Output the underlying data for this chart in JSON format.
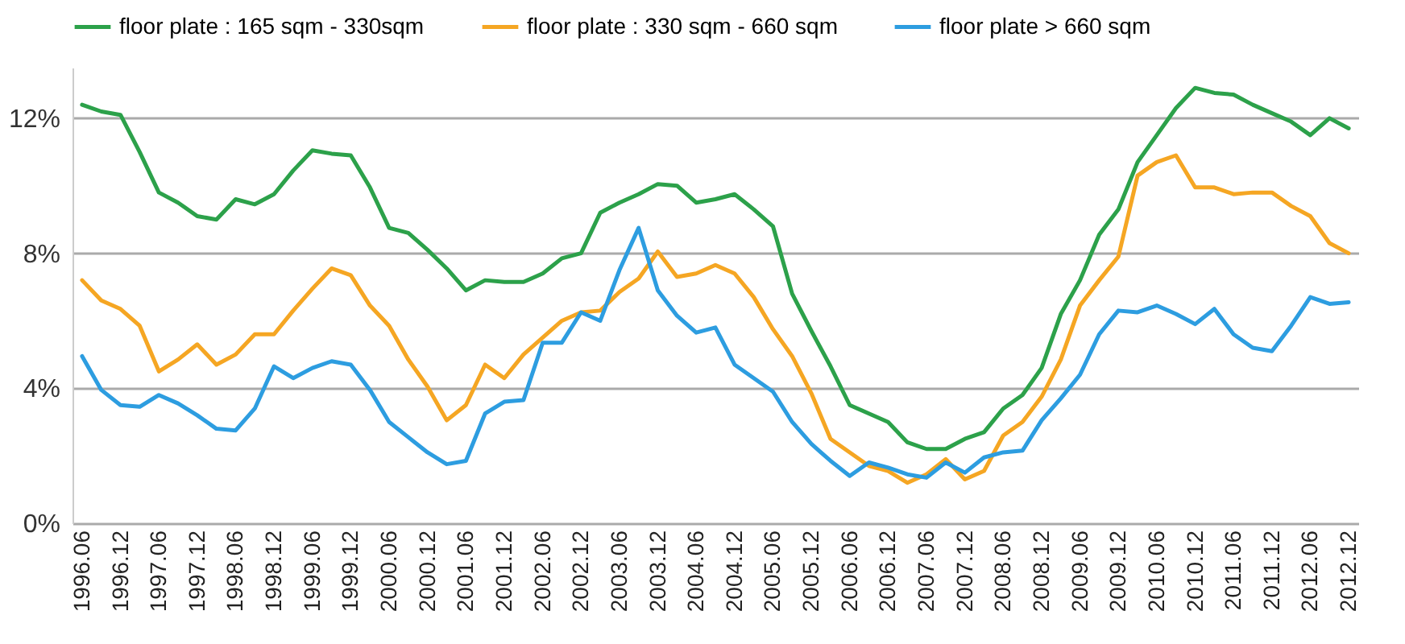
{
  "chart_data": {
    "type": "line",
    "categories": [
      "1996.06",
      null,
      "1996.12",
      null,
      "1997.06",
      null,
      "1997.12",
      null,
      "1998.06",
      null,
      "1998.12",
      null,
      "1999.06",
      null,
      "1999.12",
      null,
      "2000.06",
      null,
      "2000.12",
      null,
      "2001.06",
      null,
      "2001.12",
      null,
      "2002.06",
      null,
      "2002.12",
      null,
      "2003.06",
      null,
      "2003.12",
      null,
      "2004.06",
      null,
      "2004.12",
      null,
      "2005.06",
      null,
      "2005.12",
      null,
      "2006.06",
      null,
      "2006.12",
      null,
      "2007.06",
      null,
      "2007.12",
      null,
      "2008.06",
      null,
      "2008.12",
      null,
      "2009.06",
      null,
      "2009.12",
      null,
      "2010.06",
      null,
      "2010.12",
      null,
      "2011.06",
      null,
      "2011.12",
      null,
      "2012.06",
      null,
      "2012.12"
    ],
    "series": [
      {
        "name": "floor plate : 165 sqm - 330sqm",
        "color": "#2ca14a",
        "values": [
          12.4,
          12.2,
          12.1,
          11.0,
          9.8,
          9.5,
          9.1,
          9.0,
          9.6,
          9.45,
          9.75,
          10.45,
          11.05,
          10.95,
          10.9,
          9.95,
          8.75,
          8.6,
          8.1,
          7.55,
          6.9,
          7.2,
          7.15,
          7.15,
          7.4,
          7.85,
          8.0,
          9.2,
          9.5,
          9.75,
          10.05,
          10.0,
          9.5,
          9.6,
          9.75,
          9.3,
          8.8,
          6.8,
          5.7,
          4.65,
          3.5,
          3.25,
          3.0,
          2.4,
          2.2,
          2.2,
          2.5,
          2.7,
          3.4,
          3.8,
          4.6,
          6.2,
          7.2,
          8.55,
          9.3,
          10.7,
          11.5,
          12.3,
          12.9,
          12.75,
          12.7,
          12.4,
          12.15,
          11.9,
          11.5,
          12.0,
          11.7
        ]
      },
      {
        "name": "floor plate : 330 sqm - 660 sqm",
        "color": "#f5a623",
        "values": [
          7.2,
          6.6,
          6.35,
          5.85,
          4.5,
          4.85,
          5.3,
          4.7,
          5.0,
          5.6,
          5.6,
          6.3,
          6.95,
          7.55,
          7.35,
          6.45,
          5.85,
          4.85,
          4.05,
          3.05,
          3.5,
          4.7,
          4.3,
          5.0,
          5.5,
          6.0,
          6.25,
          6.3,
          6.85,
          7.25,
          8.05,
          7.3,
          7.4,
          7.65,
          7.4,
          6.7,
          5.75,
          4.95,
          3.85,
          2.5,
          2.1,
          1.7,
          1.55,
          1.2,
          1.45,
          1.9,
          1.3,
          1.55,
          2.6,
          3.0,
          3.75,
          4.85,
          6.45,
          7.2,
          7.9,
          10.3,
          10.7,
          10.9,
          9.95,
          9.95,
          9.75,
          9.8,
          9.8,
          9.4,
          9.1,
          8.3,
          8.0
        ]
      },
      {
        "name": "floor plate > 660 sqm",
        "color": "#2d9de0",
        "values": [
          4.95,
          3.95,
          3.5,
          3.45,
          3.8,
          3.55,
          3.2,
          2.8,
          2.75,
          3.4,
          4.65,
          4.3,
          4.6,
          4.8,
          4.7,
          3.95,
          3.0,
          2.55,
          2.1,
          1.75,
          1.85,
          3.25,
          3.6,
          3.65,
          5.35,
          5.35,
          6.25,
          6.0,
          7.5,
          8.75,
          6.9,
          6.15,
          5.65,
          5.8,
          4.7,
          4.3,
          3.9,
          3.0,
          2.35,
          1.85,
          1.4,
          1.8,
          1.65,
          1.45,
          1.35,
          1.8,
          1.5,
          1.95,
          2.1,
          2.15,
          3.05,
          3.7,
          4.4,
          5.6,
          6.3,
          6.25,
          6.45,
          6.2,
          5.9,
          6.35,
          5.6,
          5.2,
          5.1,
          5.85,
          6.7,
          6.5,
          6.55
        ]
      }
    ],
    "ylim": [
      0,
      13.5
    ],
    "yticks": [
      {
        "value": 0,
        "label": "0%"
      },
      {
        "value": 4,
        "label": "4%"
      },
      {
        "value": 8,
        "label": "8%"
      },
      {
        "value": 12,
        "label": "12%"
      }
    ],
    "grid": "y",
    "legend": "top",
    "marker": "none",
    "line_style": "solid"
  }
}
